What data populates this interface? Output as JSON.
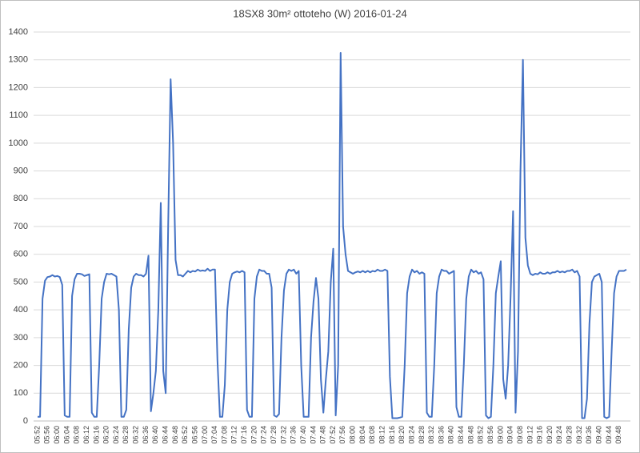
{
  "chart_data": {
    "type": "line",
    "title": "18SX8 30m² ottoteho (W) 2016-01-24",
    "categories": [
      "05:52",
      null,
      null,
      null,
      "05:56",
      null,
      null,
      null,
      "06:00",
      null,
      null,
      null,
      "06:04",
      null,
      null,
      null,
      "06:08",
      null,
      null,
      null,
      "06:12",
      null,
      null,
      null,
      "06:16",
      null,
      null,
      null,
      "06:20",
      null,
      null,
      null,
      "06:24",
      null,
      null,
      null,
      "06:28",
      null,
      null,
      null,
      "06:32",
      null,
      null,
      null,
      "06:36",
      null,
      null,
      null,
      "06:40",
      null,
      null,
      null,
      "06:44",
      null,
      null,
      null,
      "06:48",
      null,
      null,
      null,
      "06:52",
      null,
      null,
      null,
      "06:56",
      null,
      null,
      null,
      "07:00",
      null,
      null,
      null,
      "07:04",
      null,
      null,
      null,
      "07:08",
      null,
      null,
      null,
      "07:12",
      null,
      null,
      null,
      "07:16",
      null,
      null,
      null,
      "07:20",
      null,
      null,
      null,
      "07:24",
      null,
      null,
      null,
      "07:28",
      null,
      null,
      null,
      "07:32",
      null,
      null,
      null,
      "07:36",
      null,
      null,
      null,
      "07:40",
      null,
      null,
      null,
      "07:44",
      null,
      null,
      null,
      "07:48",
      null,
      null,
      null,
      "07:52",
      null,
      null,
      null,
      "07:56",
      null,
      null,
      null,
      "08:00",
      null,
      null,
      null,
      "08:04",
      null,
      null,
      null,
      "08:08",
      null,
      null,
      null,
      "08:12",
      null,
      null,
      null,
      "08:16",
      null,
      null,
      null,
      "08:20",
      null,
      null,
      null,
      "08:24",
      null,
      null,
      null,
      "08:28",
      null,
      null,
      null,
      "08:32",
      null,
      null,
      null,
      "08:36",
      null,
      null,
      null,
      "08:40",
      null,
      null,
      null,
      "08:44",
      null,
      null,
      null,
      "08:48",
      null,
      null,
      null,
      "08:52",
      null,
      null,
      null,
      "08:56",
      null,
      null,
      null,
      "09:00",
      null,
      null,
      null,
      "09:04",
      null,
      null,
      null,
      "09:08",
      null,
      null,
      null,
      "09:12",
      null,
      null,
      null,
      "09:16",
      null,
      null,
      null,
      "09:20",
      null,
      null,
      null,
      "09:24",
      null,
      null,
      null,
      "09:28",
      null,
      null,
      null,
      "09:32",
      null,
      null,
      null,
      "09:36",
      null,
      null,
      null,
      "09:40",
      null,
      null,
      null,
      "09:44",
      null,
      null,
      null,
      "09:48",
      null,
      null,
      null
    ],
    "values": [
      15,
      15,
      440,
      505,
      518,
      520,
      525,
      520,
      522,
      518,
      490,
      20,
      15,
      15,
      450,
      510,
      530,
      530,
      528,
      522,
      525,
      528,
      30,
      15,
      15,
      200,
      440,
      500,
      530,
      528,
      530,
      525,
      520,
      400,
      15,
      15,
      40,
      330,
      480,
      520,
      530,
      525,
      525,
      520,
      530,
      595,
      35,
      100,
      180,
      400,
      785,
      180,
      100,
      700,
      1230,
      1000,
      580,
      525,
      525,
      520,
      530,
      540,
      535,
      540,
      538,
      545,
      540,
      542,
      540,
      548,
      540,
      545,
      545,
      220,
      15,
      15,
      130,
      400,
      500,
      530,
      535,
      538,
      535,
      540,
      535,
      40,
      15,
      15,
      440,
      520,
      545,
      540,
      540,
      530,
      530,
      480,
      20,
      15,
      25,
      300,
      470,
      530,
      545,
      540,
      545,
      530,
      540,
      200,
      15,
      15,
      15,
      300,
      430,
      515,
      440,
      150,
      30,
      150,
      250,
      500,
      620,
      20,
      200,
      1325,
      700,
      600,
      540,
      535,
      530,
      535,
      538,
      535,
      540,
      535,
      540,
      535,
      540,
      538,
      545,
      540,
      540,
      545,
      540,
      160,
      10,
      10,
      10,
      12,
      15,
      200,
      460,
      520,
      545,
      535,
      540,
      530,
      535,
      530,
      30,
      15,
      15,
      200,
      460,
      520,
      545,
      540,
      540,
      530,
      535,
      540,
      50,
      15,
      15,
      200,
      440,
      520,
      545,
      535,
      540,
      530,
      535,
      510,
      20,
      10,
      15,
      200,
      460,
      520,
      575,
      150,
      80,
      200,
      450,
      755,
      30,
      250,
      900,
      1300,
      660,
      560,
      530,
      525,
      530,
      528,
      535,
      530,
      530,
      535,
      530,
      535,
      535,
      540,
      535,
      538,
      535,
      540,
      540,
      545,
      535,
      540,
      520,
      10,
      10,
      80,
      350,
      500,
      520,
      525,
      530,
      500,
      15,
      10,
      15,
      250,
      460,
      520,
      540,
      540,
      540,
      545
    ],
    "color": "#4472c4",
    "ylim": [
      0,
      1400
    ],
    "yticks": [
      0,
      100,
      200,
      300,
      400,
      500,
      600,
      700,
      800,
      900,
      1000,
      1100,
      1200,
      1300,
      1400
    ],
    "grid": true
  }
}
